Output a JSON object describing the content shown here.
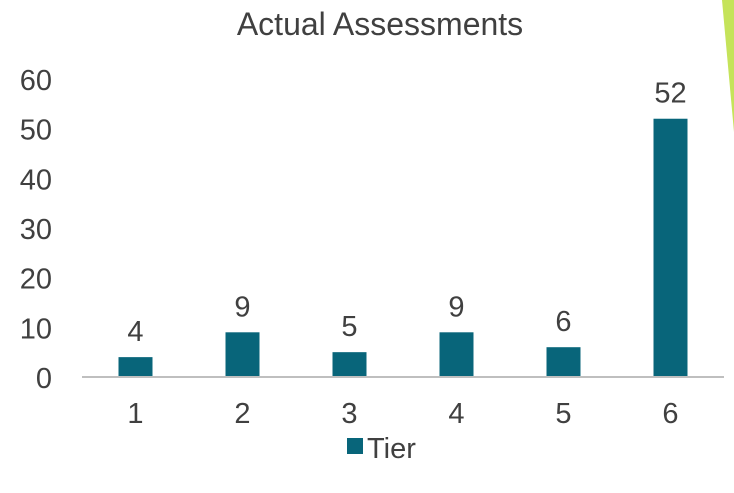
{
  "chart_data": {
    "type": "bar",
    "title": "Actual Assessments",
    "xlabel": "",
    "ylabel": "",
    "categories": [
      "1",
      "2",
      "3",
      "4",
      "5",
      "6"
    ],
    "series": [
      {
        "name": "Tier",
        "values": [
          4,
          9,
          5,
          9,
          6,
          52
        ],
        "color": "#08657A"
      }
    ],
    "data_labels": [
      "4",
      "9",
      "5",
      "9",
      "6",
      "52"
    ],
    "ylim": [
      0,
      60
    ],
    "yticks": [
      "0",
      "10",
      "20",
      "30",
      "40",
      "50",
      "60"
    ],
    "grid": false,
    "legend_position": "bottom",
    "colors": {
      "text": "#404040",
      "axis": "#bfbfbf",
      "accent_decoration": "#c5e35a"
    }
  }
}
